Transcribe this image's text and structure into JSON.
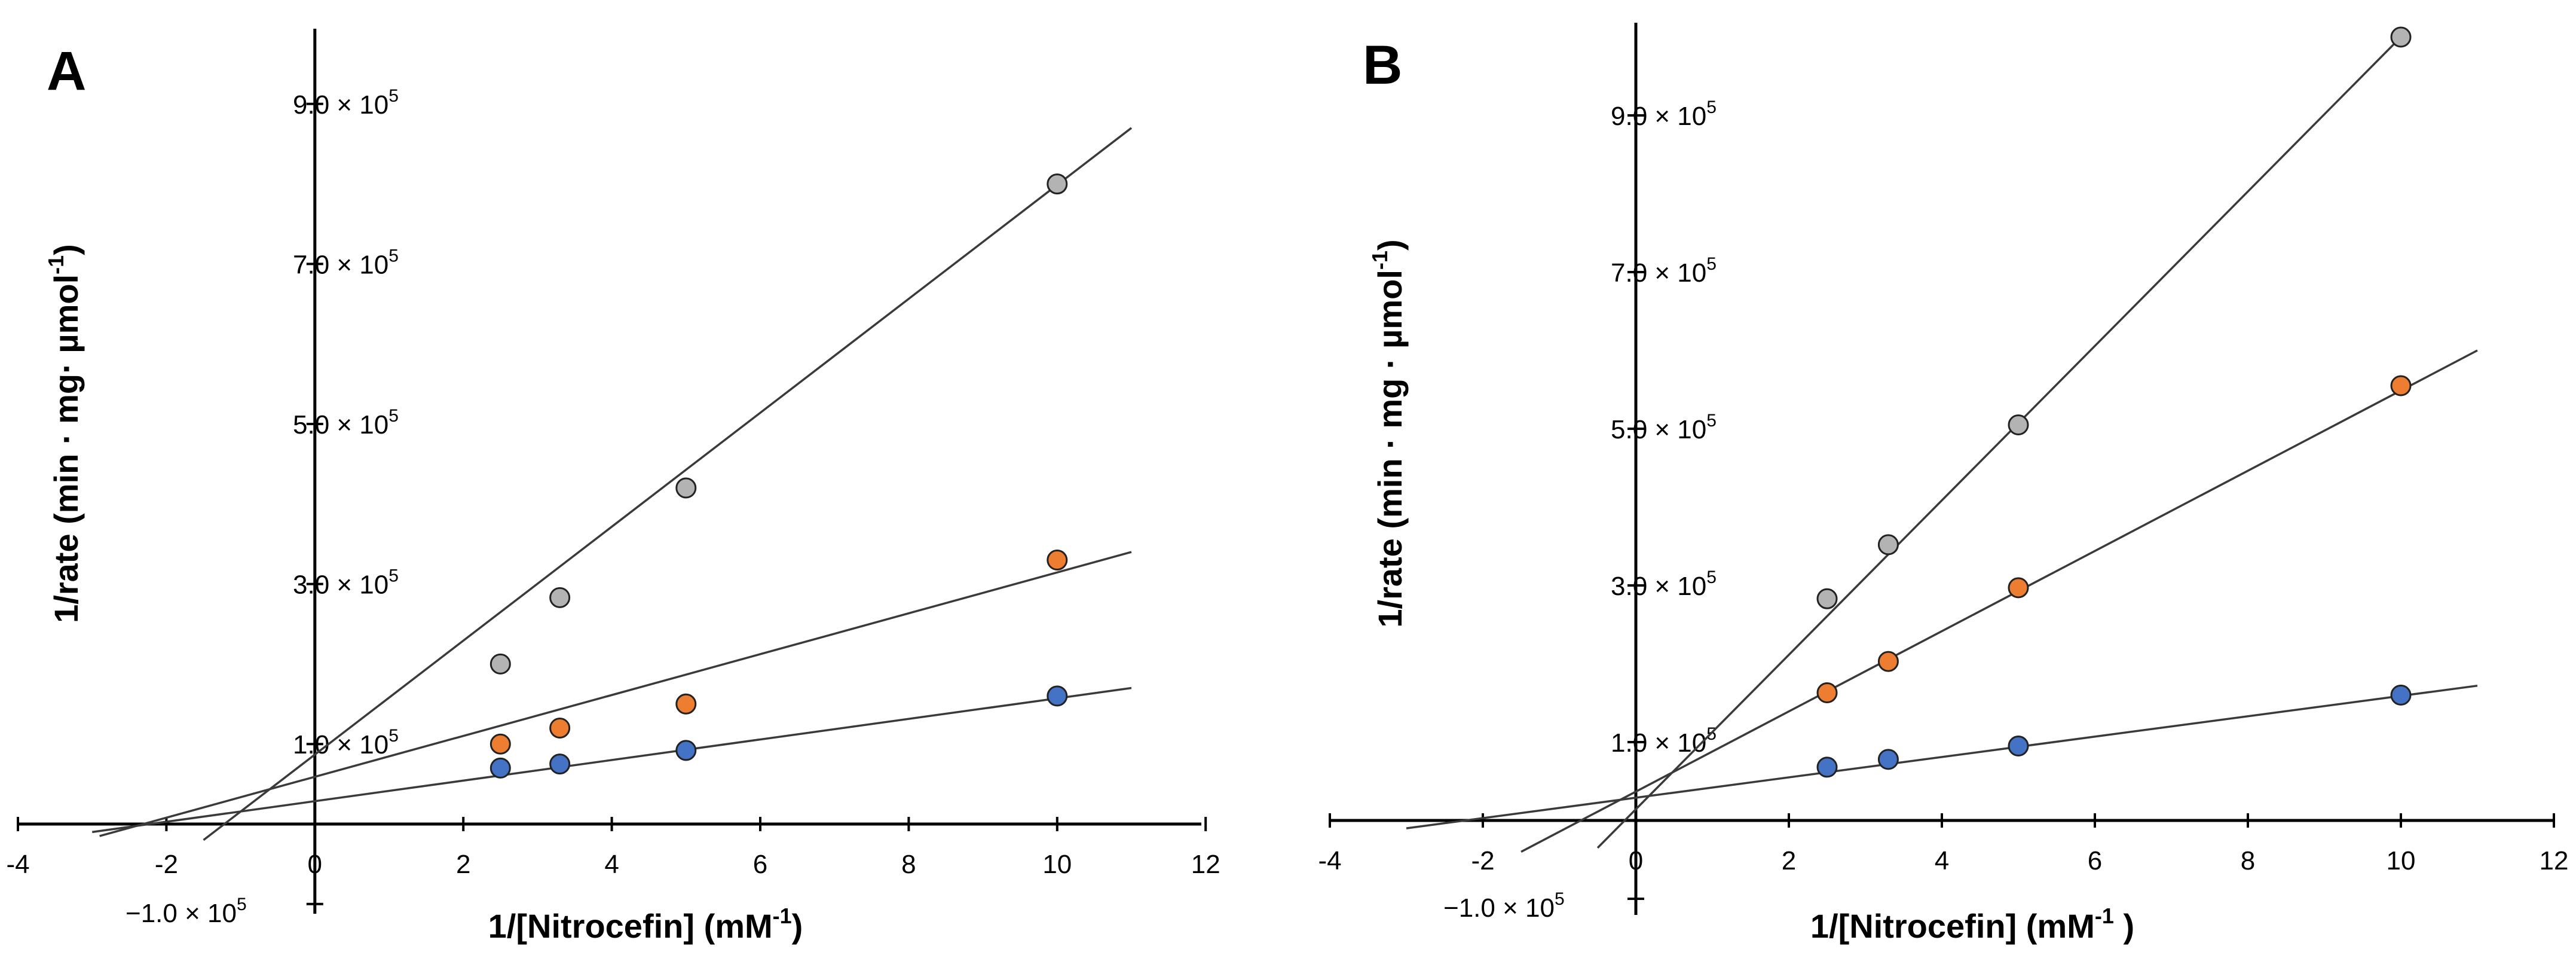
{
  "chart_data": [
    {
      "panel": "A",
      "type": "scatter",
      "xlabel": "1/[Nitrocefin] (mM",
      "xlabel_sup": "-1",
      "xlabel_end": ")",
      "ylabel": "1/rate (min · mg· µmol",
      "ylabel_sup": "-1",
      "ylabel_end": ")",
      "xlim": [
        -4,
        12
      ],
      "ylim": [
        -100000,
        1000000
      ],
      "x_ticks": [
        -4,
        -2,
        0,
        2,
        4,
        6,
        8,
        10,
        12
      ],
      "x_tick_labels": [
        "-4",
        "-2",
        "0",
        "2",
        "4",
        "6",
        "8",
        "10",
        "12"
      ],
      "y_ticks": [
        -100000,
        100000,
        300000,
        500000,
        700000,
        900000
      ],
      "y_tick_labels": [
        {
          "mant": "−1.0 × 10",
          "exp": "5"
        },
        {
          "mant": "1.0 × 10",
          "exp": "5"
        },
        {
          "mant": "3.0 × 10",
          "exp": "5"
        },
        {
          "mant": "5.0 × 10",
          "exp": "5"
        },
        {
          "mant": "7.0 × 10",
          "exp": "5"
        },
        {
          "mant": "9.0 × 10",
          "exp": "5"
        }
      ],
      "series": [
        {
          "color": "#b3b3b3",
          "x": [
            2.5,
            3.3,
            5,
            10
          ],
          "y": [
            200000,
            283000,
            420000,
            800000
          ],
          "fit": {
            "x": [
              -1.5,
              11
            ],
            "y": [
              -20000,
              870000
            ]
          }
        },
        {
          "color": "#ed7d31",
          "x": [
            2.5,
            3.3,
            5,
            10
          ],
          "y": [
            100000,
            120000,
            150000,
            330000
          ],
          "fit": {
            "x": [
              -2.9,
              11
            ],
            "y": [
              -15000,
              340000
            ]
          }
        },
        {
          "color": "#4472c4",
          "x": [
            2.5,
            3.3,
            5,
            10
          ],
          "y": [
            70000,
            75000,
            92000,
            160000
          ],
          "fit": {
            "x": [
              -3.0,
              11
            ],
            "y": [
              -10000,
              170000
            ]
          }
        }
      ]
    },
    {
      "panel": "B",
      "type": "scatter",
      "xlabel": "1/[Nitrocefin] (mM",
      "xlabel_sup": "-1",
      "xlabel_end": " )",
      "ylabel": "1/rate (min · mg · µmol",
      "ylabel_sup": "-1",
      "ylabel_end": ")",
      "xlim": [
        -4,
        12
      ],
      "ylim": [
        -100000,
        1000000
      ],
      "x_ticks": [
        -4,
        -2,
        0,
        2,
        4,
        6,
        8,
        10,
        12
      ],
      "x_tick_labels": [
        "-4",
        "-2",
        "0",
        "2",
        "4",
        "6",
        "8",
        "10",
        "12"
      ],
      "y_ticks": [
        -100000,
        100000,
        300000,
        500000,
        700000,
        900000
      ],
      "y_tick_labels": [
        {
          "mant": "−1.0 × 10",
          "exp": "5"
        },
        {
          "mant": "1.0 × 10",
          "exp": "5"
        },
        {
          "mant": "3.0 × 10",
          "exp": "5"
        },
        {
          "mant": "5.0 × 10",
          "exp": "5"
        },
        {
          "mant": "7.0 × 10",
          "exp": "5"
        },
        {
          "mant": "9.0 × 10",
          "exp": "5"
        }
      ],
      "series": [
        {
          "color": "#b3b3b3",
          "x": [
            2.5,
            3.3,
            5,
            10
          ],
          "y": [
            283000,
            352000,
            505000,
            1000000
          ],
          "fit": {
            "x": [
              -0.5,
              10
            ],
            "y": [
              -35000,
              1000000
            ]
          }
        },
        {
          "color": "#ed7d31",
          "x": [
            2.5,
            3.3,
            5,
            10
          ],
          "y": [
            163000,
            203000,
            297000,
            555000
          ],
          "fit": {
            "x": [
              -1.5,
              11
            ],
            "y": [
              -40000,
              600000
            ]
          }
        },
        {
          "color": "#4472c4",
          "x": [
            2.5,
            3.3,
            5,
            10
          ],
          "y": [
            68000,
            78000,
            95000,
            160000
          ],
          "fit": {
            "x": [
              -3.0,
              11
            ],
            "y": [
              -10000,
              172000
            ]
          }
        }
      ]
    }
  ]
}
